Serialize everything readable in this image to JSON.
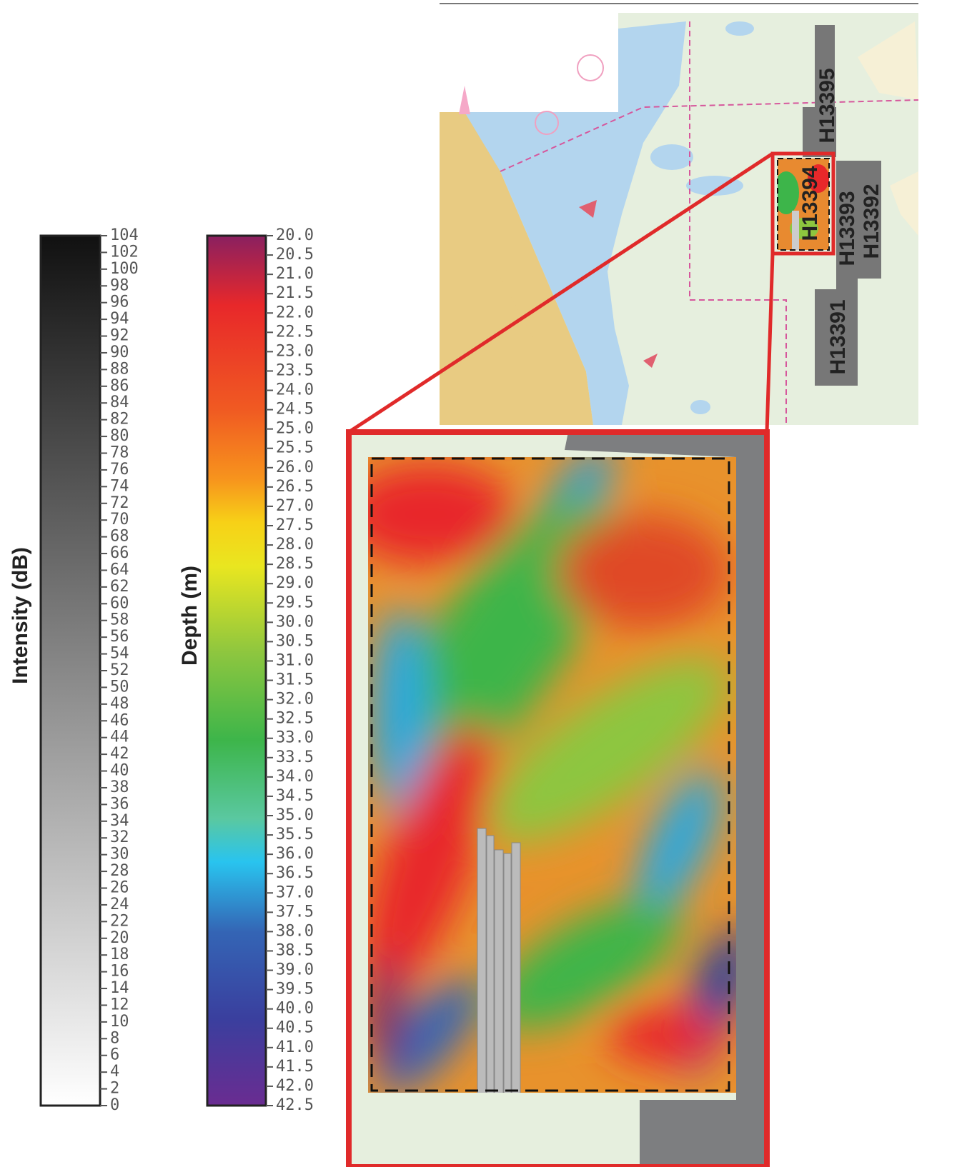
{
  "intensity_bar": {
    "title": "Intensity (dB)",
    "ticks": [
      0,
      2,
      4,
      6,
      8,
      10,
      12,
      14,
      16,
      18,
      20,
      22,
      24,
      26,
      28,
      30,
      32,
      34,
      36,
      38,
      40,
      42,
      44,
      46,
      48,
      50,
      52,
      54,
      56,
      58,
      60,
      62,
      64,
      66,
      68,
      70,
      72,
      74,
      76,
      78,
      80,
      82,
      84,
      86,
      88,
      90,
      92,
      94,
      96,
      98,
      100,
      102,
      104
    ]
  },
  "depth_bar": {
    "title": "Depth (m)",
    "ticks": [
      {
        "value": 20,
        "label": "20.0"
      },
      {
        "value": 20.5,
        "label": "20.5"
      },
      {
        "value": 21,
        "label": "21.0"
      },
      {
        "value": 21.5,
        "label": "21.5"
      },
      {
        "value": 22,
        "label": "22.0"
      },
      {
        "value": 22.5,
        "label": "22.5"
      },
      {
        "value": 23,
        "label": "23.0"
      },
      {
        "value": 23.5,
        "label": "23.5"
      },
      {
        "value": 24,
        "label": "24.0"
      },
      {
        "value": 24.5,
        "label": "24.5"
      },
      {
        "value": 25,
        "label": "25.0"
      },
      {
        "value": 25.5,
        "label": "25.5"
      },
      {
        "value": 26,
        "label": "26.0"
      },
      {
        "value": 26.5,
        "label": "26.5"
      },
      {
        "value": 27,
        "label": "27.0"
      },
      {
        "value": 27.5,
        "label": "27.5"
      },
      {
        "value": 28,
        "label": "28.0"
      },
      {
        "value": 28.5,
        "label": "28.5"
      },
      {
        "value": 29,
        "label": "29.0"
      },
      {
        "value": 29.5,
        "label": "29.5"
      },
      {
        "value": 30,
        "label": "30.0"
      },
      {
        "value": 30.5,
        "label": "30.5"
      },
      {
        "value": 31,
        "label": "31.0"
      },
      {
        "value": 31.5,
        "label": "31.5"
      },
      {
        "value": 32,
        "label": "32.0"
      },
      {
        "value": 32.5,
        "label": "32.5"
      },
      {
        "value": 33,
        "label": "33.0"
      },
      {
        "value": 33.5,
        "label": "33.5"
      },
      {
        "value": 34,
        "label": "34.0"
      },
      {
        "value": 34.5,
        "label": "34.5"
      },
      {
        "value": 35,
        "label": "35.0"
      },
      {
        "value": 35.5,
        "label": "35.5"
      },
      {
        "value": 36,
        "label": "36.0"
      },
      {
        "value": 36.5,
        "label": "36.5"
      },
      {
        "value": 37,
        "label": "37.0"
      },
      {
        "value": 37.5,
        "label": "37.5"
      },
      {
        "value": 38,
        "label": "38.0"
      },
      {
        "value": 38.5,
        "label": "38.5"
      },
      {
        "value": 39,
        "label": "39.0"
      },
      {
        "value": 39.5,
        "label": "39.5"
      },
      {
        "value": 40,
        "label": "40.0"
      },
      {
        "value": 40.5,
        "label": "40.5"
      },
      {
        "value": 41,
        "label": "41.0"
      },
      {
        "value": 41.5,
        "label": "41.5"
      },
      {
        "value": 42,
        "label": "42.0"
      },
      {
        "value": 42.5,
        "label": "42.5"
      }
    ]
  },
  "surveys": [
    "H13395",
    "H13394",
    "H13393",
    "H13392",
    "H13391"
  ]
}
